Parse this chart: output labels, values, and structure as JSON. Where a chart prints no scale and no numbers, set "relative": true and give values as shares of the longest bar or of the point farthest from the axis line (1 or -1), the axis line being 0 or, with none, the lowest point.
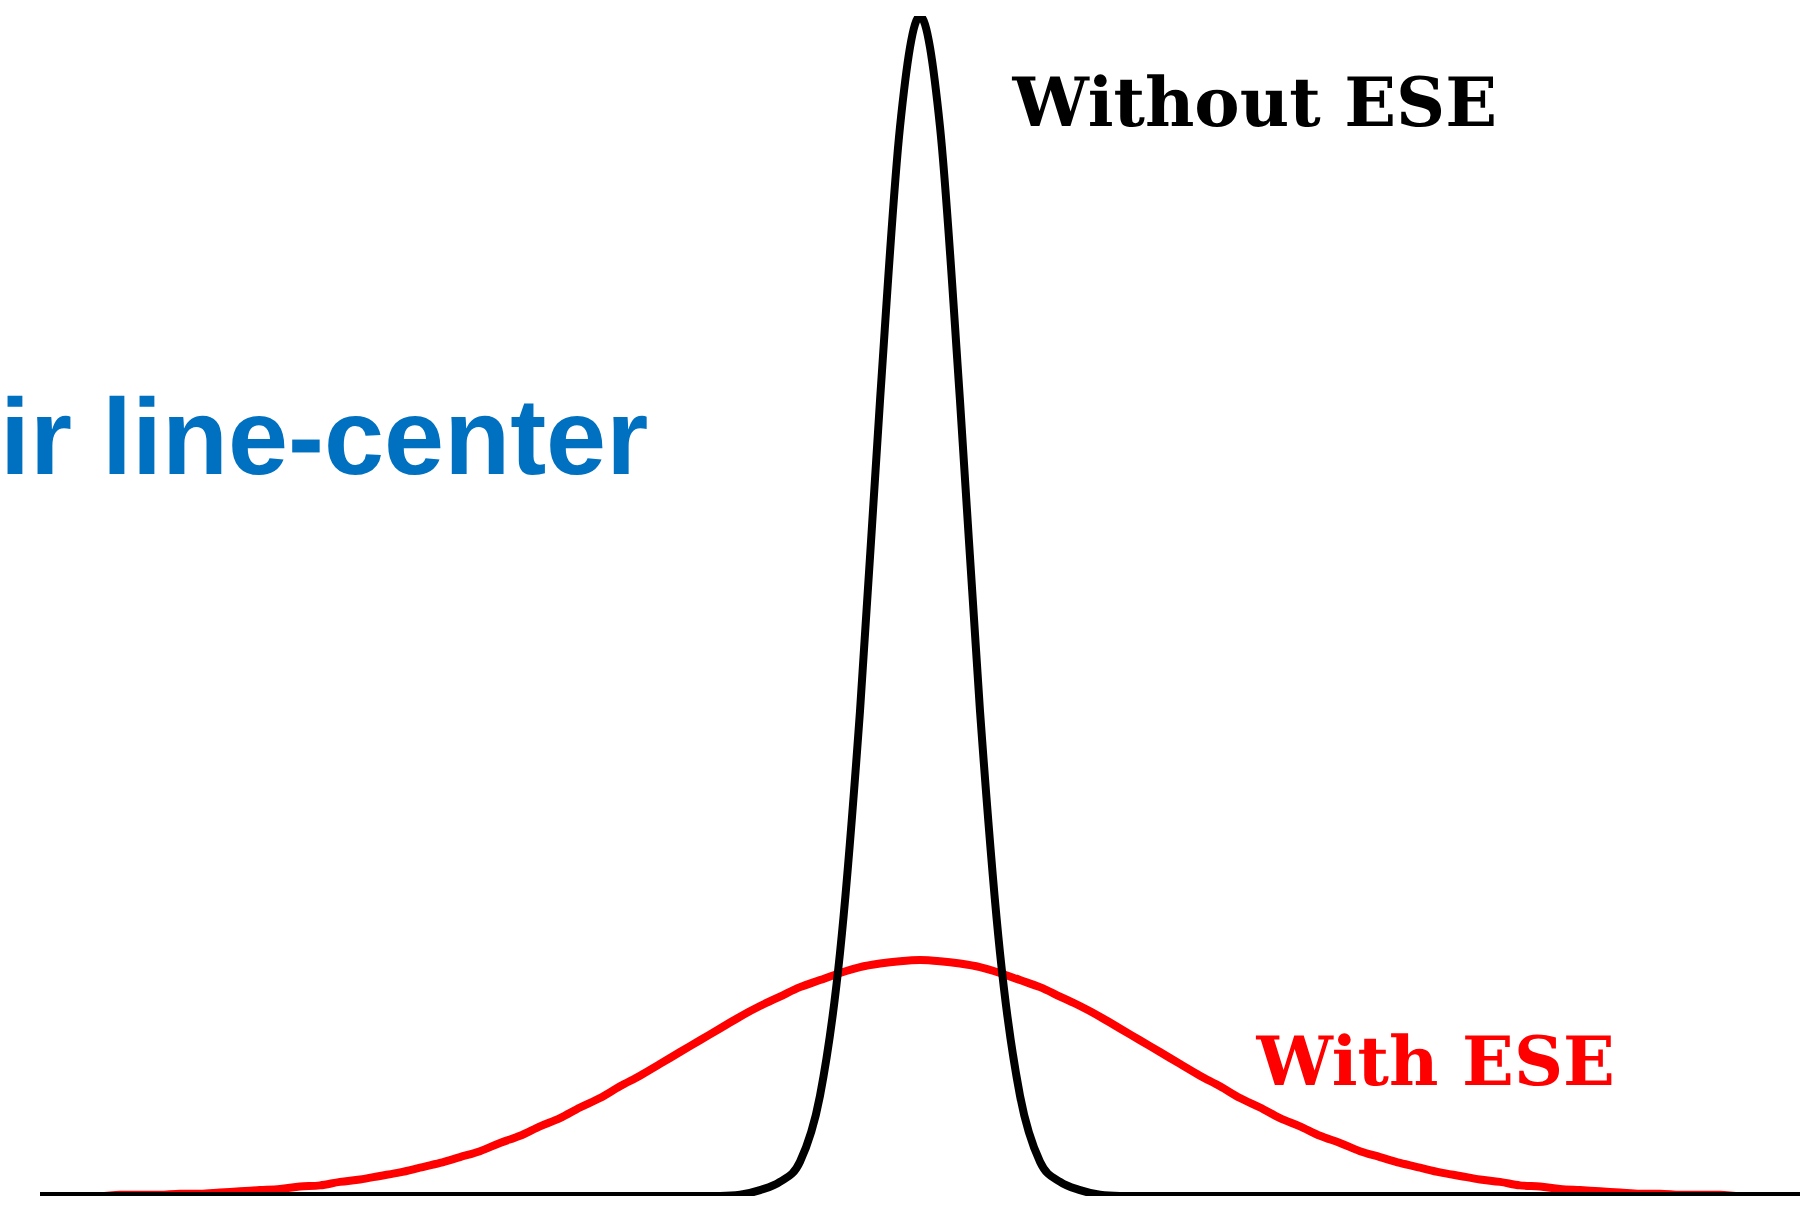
{
  "chart_data": {
    "type": "line",
    "relative": true,
    "marker": "none",
    "annotations": [
      "ir line-center"
    ],
    "categories": [
      null,
      null,
      null,
      null,
      null,
      null,
      null,
      null,
      null,
      null,
      null,
      null,
      null,
      null,
      null,
      null,
      null,
      null,
      null,
      null,
      null,
      null,
      null,
      null,
      null,
      null,
      null,
      null,
      null,
      null,
      null,
      null,
      null,
      null,
      null,
      null,
      null,
      null,
      null,
      null,
      null,
      null,
      null,
      null,
      null,
      null,
      null,
      null,
      null,
      null,
      null,
      null,
      null,
      null,
      null,
      null,
      null,
      null,
      null,
      null,
      null,
      null,
      null,
      null,
      null,
      null,
      null,
      null,
      null,
      null,
      null,
      null,
      null,
      null,
      null,
      null,
      null,
      null,
      null,
      null,
      null,
      null,
      null,
      null,
      null,
      null,
      null,
      null,
      null
    ],
    "series": [
      {
        "name": "Without ESE",
        "color": "#000000",
        "values": [
          0,
          0,
          0,
          0,
          0,
          0,
          0,
          0,
          0,
          0,
          0,
          0,
          0,
          0,
          0,
          0,
          0,
          0,
          0,
          0,
          0,
          0,
          0,
          0,
          0,
          0,
          0,
          0,
          0,
          0,
          0,
          0,
          0,
          0,
          0,
          0.001,
          0.005,
          0.012,
          0.029,
          0.085,
          0.206,
          0.411,
          0.674,
          0.906,
          1,
          0.906,
          0.674,
          0.411,
          0.206,
          0.085,
          0.029,
          0.012,
          0.005,
          0.001,
          0,
          0,
          0,
          0,
          0,
          0,
          0,
          0,
          0,
          0,
          0,
          0,
          0,
          0,
          0,
          0,
          0,
          0,
          0,
          0,
          0,
          0,
          0,
          0,
          0,
          0,
          0,
          0,
          0,
          0,
          0,
          0,
          0,
          0,
          0
        ]
      },
      {
        "name": "With ESE",
        "color": "#ff0000",
        "values": [
          null,
          null,
          0,
          0,
          0.001,
          0.001,
          0.001,
          0.002,
          0.002,
          0.003,
          0.004,
          0.005,
          0.006,
          0.008,
          0.009,
          0.012,
          0.014,
          0.017,
          0.02,
          0.024,
          0.028,
          0.033,
          0.038,
          0.045,
          0.051,
          0.059,
          0.066,
          0.075,
          0.083,
          0.093,
          0.102,
          0.112,
          0.122,
          0.132,
          0.142,
          0.152,
          0.161,
          0.169,
          0.177,
          0.183,
          0.189,
          0.194,
          0.197,
          0.199,
          0.2,
          0.199,
          0.197,
          0.194,
          0.189,
          0.183,
          0.177,
          0.169,
          0.161,
          0.152,
          0.142,
          0.132,
          0.122,
          0.112,
          0.102,
          0.093,
          0.083,
          0.075,
          0.066,
          0.059,
          0.051,
          0.045,
          0.038,
          0.033,
          0.028,
          0.024,
          0.02,
          0.017,
          0.014,
          0.012,
          0.009,
          0.008,
          0.006,
          0.005,
          0.004,
          0.003,
          0.002,
          0.002,
          0.001,
          0.001,
          0.001,
          0,
          0,
          null,
          null
        ]
      }
    ]
  }
}
